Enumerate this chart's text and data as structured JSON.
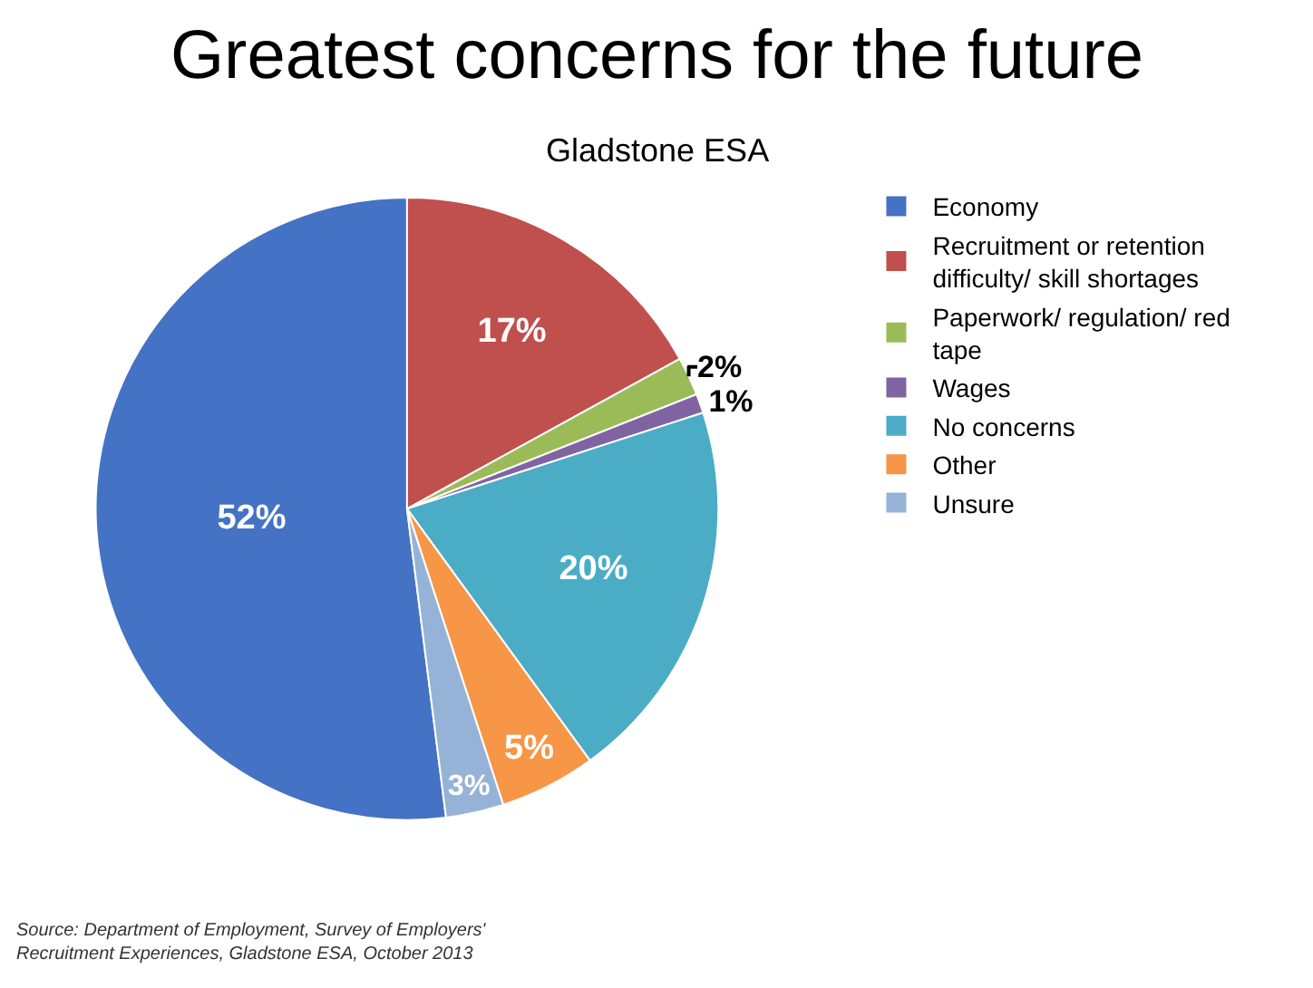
{
  "chart_data": {
    "type": "pie",
    "title": "Greatest concerns for the future",
    "subtitle": "Gladstone ESA",
    "categories": [
      "Economy",
      "Recruitment or retention difficulty/ skill shortages",
      "Paperwork/ regulation/ red tape",
      "Wages",
      "No concerns",
      "Other",
      "Unsure"
    ],
    "values": [
      52,
      17,
      2,
      1,
      20,
      5,
      3
    ],
    "colors": [
      "#4472c4",
      "#c0504d",
      "#9bbb59",
      "#8064a2",
      "#4bacc6",
      "#f79646",
      "#95b3d7"
    ],
    "value_labels": [
      "52%",
      "17%",
      "2%",
      "1%",
      "20%",
      "5%",
      "3%"
    ],
    "legend": "right",
    "annotations": [
      "Source: Department of Employment, Survey of Employers' Recruitment Experiences, Gladstone ESA, October 2013"
    ]
  }
}
